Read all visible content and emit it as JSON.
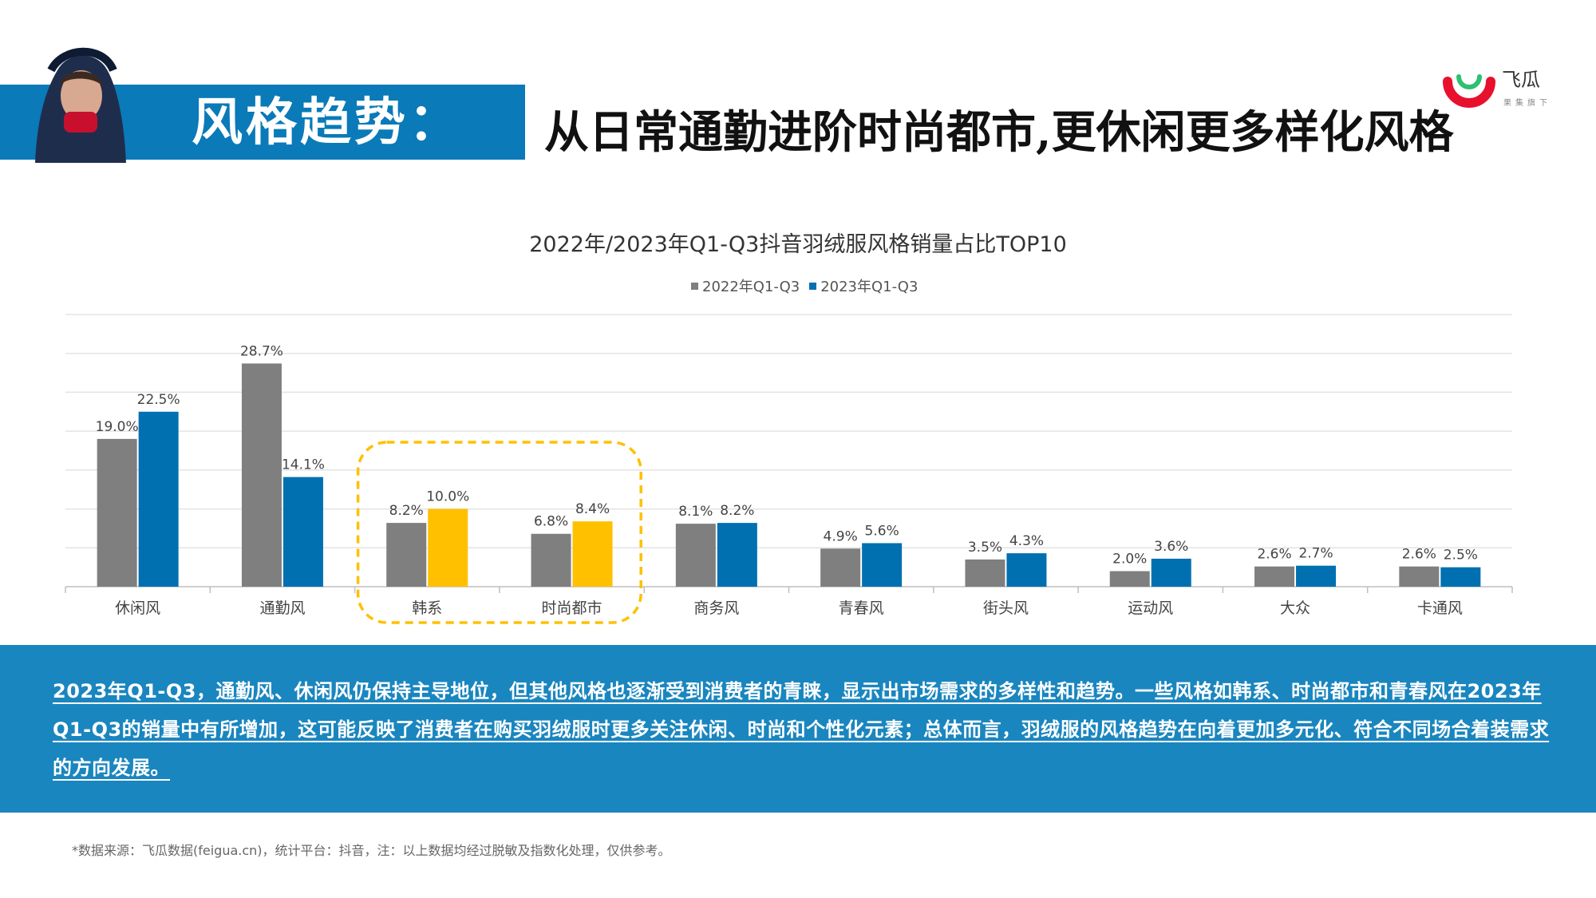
{
  "header": {
    "label": "风格趋势：",
    "title": "从日常通勤进阶时尚都市,更休闲更多样化风格"
  },
  "logo": {
    "name": "飞瓜",
    "subtitle": "果集旗下"
  },
  "colors": {
    "accent_blue": "#0a7ab8",
    "series_2022": "#7f7f7f",
    "series_2023": "#0070b0",
    "highlight": "#ffc000"
  },
  "chart_data": {
    "type": "bar",
    "title": "2022年/2023年Q1-Q3抖音羽绒服风格销量占比TOP10",
    "categories": [
      "休闲风",
      "通勤风",
      "韩系",
      "时尚都市",
      "商务风",
      "青春风",
      "街头风",
      "运动风",
      "大众",
      "卡通风"
    ],
    "series": [
      {
        "name": "2022年Q1-Q3",
        "values": [
          19.0,
          28.7,
          8.2,
          6.8,
          8.1,
          4.9,
          3.5,
          2.0,
          2.6,
          2.6
        ]
      },
      {
        "name": "2023年Q1-Q3",
        "values": [
          22.5,
          14.1,
          10.0,
          8.4,
          8.2,
          5.6,
          4.3,
          3.6,
          2.7,
          2.5
        ]
      }
    ],
    "data_labels": [
      [
        "19.0%",
        "28.7%",
        "8.2%",
        "6.8%",
        "8.1%",
        "4.9%",
        "3.5%",
        "2.0%",
        "2.6%",
        "2.6%"
      ],
      [
        "22.5%",
        "14.1%",
        "10.0%",
        "8.4%",
        "8.2%",
        "5.6%",
        "4.3%",
        "3.6%",
        "2.7%",
        "2.5%"
      ]
    ],
    "highlighted_categories": [
      "韩系",
      "时尚都市"
    ],
    "ylim": [
      0,
      35
    ],
    "grid": true,
    "legend_position": "top-center",
    "xlabel": "",
    "ylabel": ""
  },
  "summary": "2023年Q1-Q3，通勤风、休闲风仍保持主导地位，但其他风格也逐渐受到消费者的青睐，显示出市场需求的多样性和趋势。一些风格如韩系、时尚都市和青春风在2023年Q1-Q3的销量中有所增加，这可能反映了消费者在购买羽绒服时更多关注休闲、时尚和个性化元素；总体而言，羽绒服的风格趋势在向着更加多元化、符合不同场合着装需求的方向发展。",
  "footnote": "*数据来源：飞瓜数据(feigua.cn)，统计平台：抖音，注：以上数据均经过脱敏及指数化处理，仅供参考。"
}
